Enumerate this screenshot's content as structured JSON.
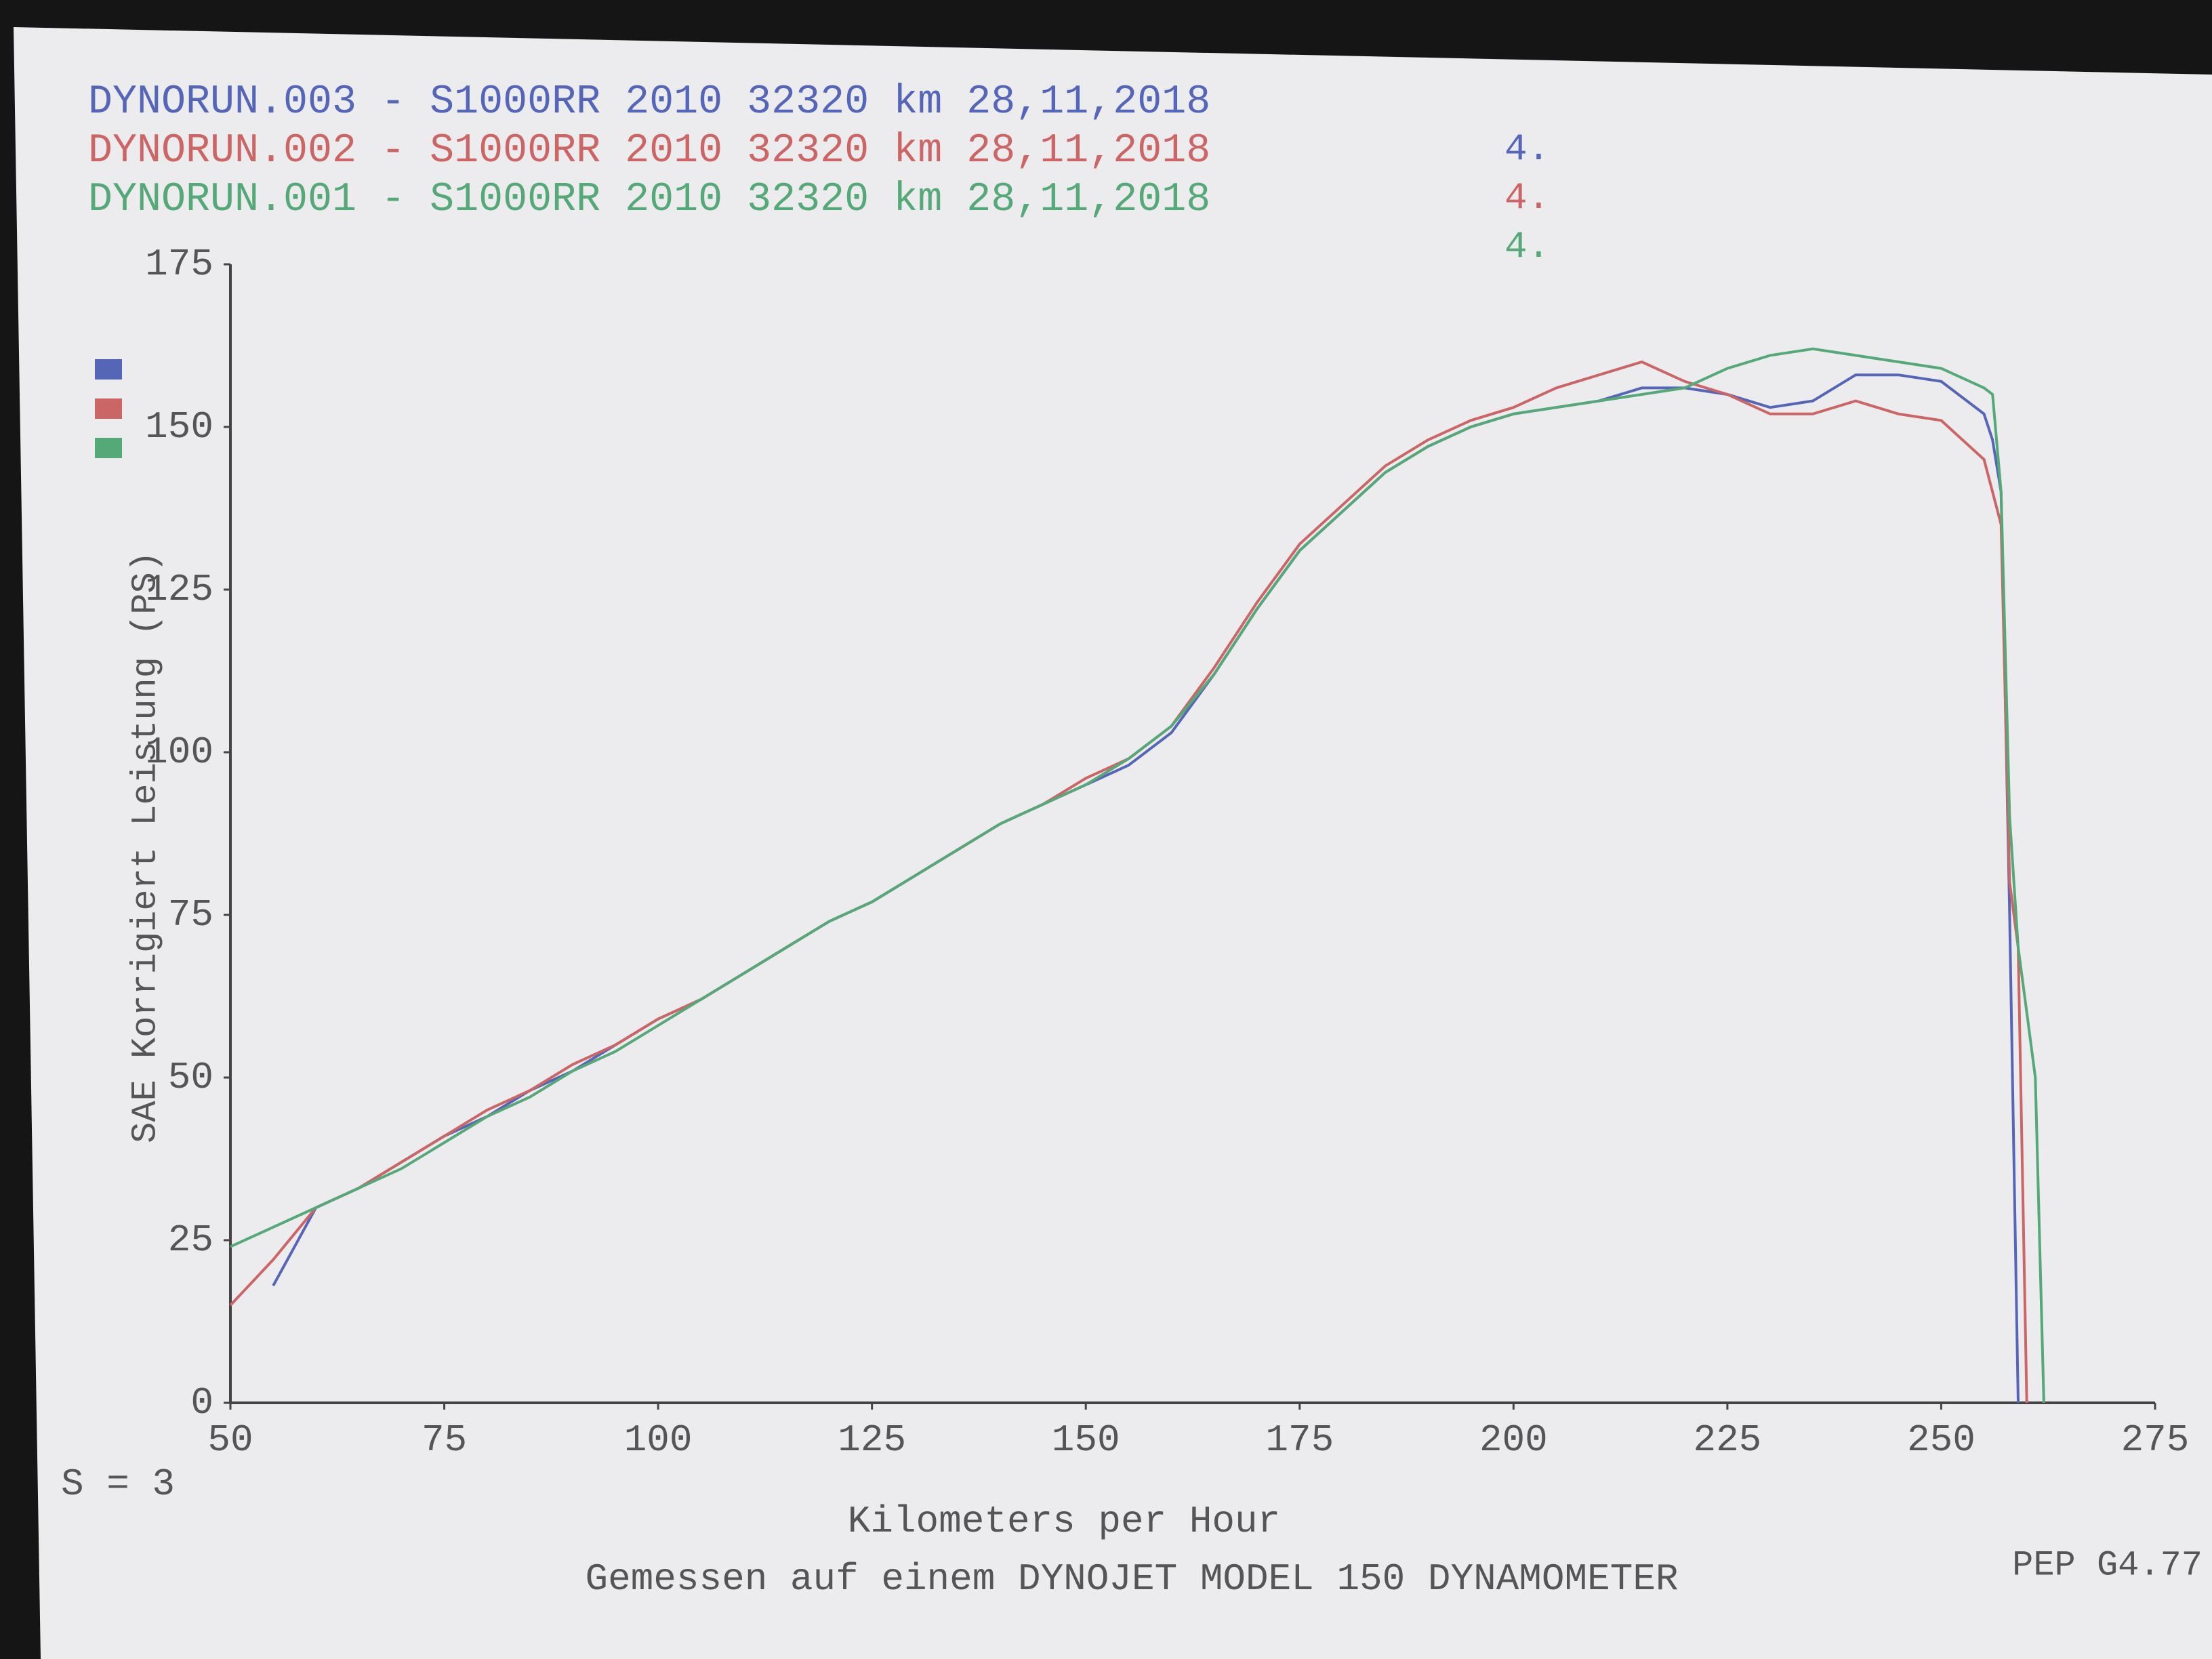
{
  "chart_data": {
    "type": "line",
    "x_label": "Kilometers per Hour",
    "y_label": "SAE Korrigiert Leistung (PS)",
    "footer": "Gemessen auf einem DYNOJET MODEL 150 DYNAMOMETER",
    "smoothing": "S = 3",
    "version": "PEP G4.77",
    "xlim": [
      50,
      275
    ],
    "xticks": [
      50,
      75,
      100,
      125,
      150,
      175,
      200,
      225,
      250,
      275
    ],
    "ylim": [
      0,
      175
    ],
    "yticks": [
      0,
      25,
      50,
      75,
      100,
      125,
      150,
      175
    ],
    "grid": false,
    "x": [
      50,
      55,
      60,
      65,
      70,
      75,
      80,
      85,
      90,
      95,
      100,
      105,
      110,
      115,
      120,
      125,
      130,
      135,
      140,
      145,
      150,
      155,
      160,
      165,
      170,
      175,
      180,
      185,
      190,
      195,
      200,
      205,
      210,
      215,
      220,
      225,
      230,
      235,
      240,
      245,
      250,
      255,
      256,
      257,
      258,
      259,
      260,
      261,
      262
    ],
    "series": [
      {
        "name": "DYNORUN.003 - S1000RR 2010 32320 km 28,11,2018",
        "note": "4.",
        "color": "#5566b8",
        "values": [
          null,
          18,
          30,
          33,
          37,
          41,
          44,
          48,
          51,
          55,
          59,
          62,
          66,
          70,
          74,
          77,
          81,
          85,
          89,
          92,
          95,
          98,
          103,
          112,
          122,
          131,
          137,
          143,
          147,
          150,
          152,
          153,
          154,
          156,
          156,
          155,
          153,
          154,
          158,
          158,
          157,
          152,
          148,
          140,
          75,
          0,
          null,
          null,
          null
        ]
      },
      {
        "name": "DYNORUN.002 - S1000RR 2010 32320 km 28,11,2018",
        "note": "4.",
        "color": "#cc6666",
        "values": [
          15,
          22,
          30,
          33,
          37,
          41,
          45,
          48,
          52,
          55,
          59,
          62,
          66,
          70,
          74,
          77,
          81,
          85,
          89,
          92,
          96,
          99,
          104,
          113,
          123,
          132,
          138,
          144,
          148,
          151,
          153,
          156,
          158,
          160,
          157,
          155,
          152,
          152,
          154,
          152,
          151,
          145,
          140,
          135,
          80,
          70,
          0,
          null,
          null
        ]
      },
      {
        "name": "DYNORUN.001 - S1000RR 2010 32320 km 28,11,2018",
        "note": "4.",
        "color": "#55a877",
        "values": [
          24,
          27,
          30,
          33,
          36,
          40,
          44,
          47,
          51,
          54,
          58,
          62,
          66,
          70,
          74,
          77,
          81,
          85,
          89,
          92,
          95,
          99,
          104,
          112,
          122,
          131,
          137,
          143,
          147,
          150,
          152,
          153,
          154,
          155,
          156,
          159,
          161,
          162,
          161,
          160,
          159,
          156,
          155,
          140,
          90,
          70,
          60,
          50,
          0
        ]
      }
    ]
  }
}
